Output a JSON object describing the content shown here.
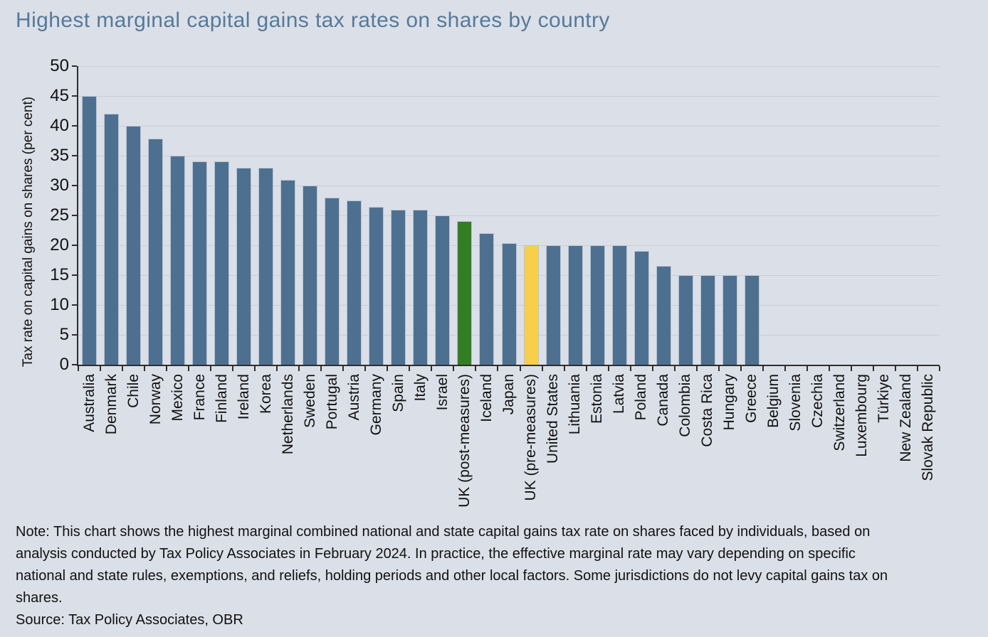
{
  "chart_data": {
    "type": "bar",
    "title": "Highest marginal capital gains tax rates on shares by country",
    "xlabel": "",
    "ylabel": "Tax rate on capital gains on shares (per cent)",
    "ylim": [
      0,
      50
    ],
    "ytick_step": 5,
    "grid": true,
    "legend": "none",
    "categories": [
      "Australia",
      "Denmark",
      "Chile",
      "Norway",
      "Mexico",
      "France",
      "Finland",
      "Ireland",
      "Korea",
      "Netherlands",
      "Sweden",
      "Portugal",
      "Austria",
      "Germany",
      "Spain",
      "Italy",
      "Israel",
      "UK (post-measures)",
      "Iceland",
      "Japan",
      "UK (pre-measures)",
      "United States",
      "Lithuania",
      "Estonia",
      "Latvia",
      "Poland",
      "Canada",
      "Colombia",
      "Costa Rica",
      "Hungary",
      "Greece",
      "Belgium",
      "Slovenia",
      "Czechia",
      "Switzerland",
      "Luxembourg",
      "Türkiye",
      "New Zealand",
      "Slovak Republic"
    ],
    "values": [
      45,
      42,
      40,
      37.8,
      35,
      34,
      34,
      33,
      33,
      31,
      30,
      28,
      27.5,
      26.4,
      26,
      26,
      25,
      24,
      22,
      20.3,
      20,
      20,
      20,
      20,
      20,
      19,
      16.5,
      15,
      15,
      15,
      15,
      0,
      0,
      0,
      0,
      0,
      0,
      0,
      0
    ],
    "bar_color_default": "#4D7090",
    "bar_color_overrides": {
      "17": "#337E22",
      "20": "#F7CF4A"
    }
  },
  "note": "Note: This chart shows the highest marginal combined national and state capital gains tax rate on shares faced by individuals, based on analysis conducted by Tax Policy Associates in February 2024. In practice, the effective marginal rate may vary depending on specific national and state rules, exemptions, and reliefs, holding periods and other local factors. Some jurisdictions do not levy capital gains tax on shares.",
  "source": "Source: Tax Policy Associates, OBR",
  "colors": {
    "background": "#DBDFE8",
    "title": "#567A99",
    "bar_blue": "#4D7090",
    "bar_green": "#337E22",
    "bar_yellow": "#F7CF4A",
    "bar_edge": "#B9C4D2",
    "gridline": "#C9CDD4",
    "axis": "#2E2E2E",
    "text": "#111111"
  }
}
